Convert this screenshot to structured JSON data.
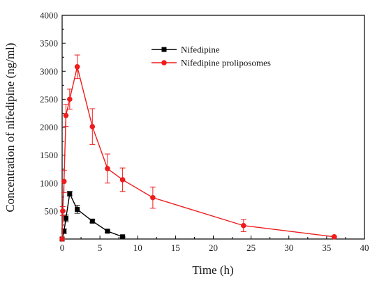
{
  "chart_data": {
    "type": "line",
    "title": "",
    "xlabel": "Time (h)",
    "ylabel": "Concentration of nifedipine (ng/ml)",
    "xlim": [
      0,
      40
    ],
    "ylim": [
      0,
      4000
    ],
    "x_ticks": [
      0,
      5,
      10,
      15,
      20,
      25,
      30,
      35,
      40
    ],
    "y_ticks": [
      500,
      1000,
      1500,
      2000,
      2500,
      3000,
      3500,
      4000
    ],
    "x_tick_labels": [
      "0",
      "5",
      "10",
      "15",
      "20",
      "25",
      "30",
      "35",
      "40"
    ],
    "y_tick_labels": [
      "500",
      "1000",
      "1500",
      "2000",
      "2500",
      "3000",
      "3500",
      "4000"
    ],
    "grid": false,
    "legend_position": "top-center",
    "series": [
      {
        "name": "Nifedipine",
        "color": "#000000",
        "marker": "square",
        "points": [
          {
            "x": 0,
            "y": 0,
            "err": 0
          },
          {
            "x": 0.25,
            "y": 140,
            "err": 40
          },
          {
            "x": 0.5,
            "y": 370,
            "err": 60
          },
          {
            "x": 1,
            "y": 810,
            "err": 40
          },
          {
            "x": 2,
            "y": 530,
            "err": 70
          },
          {
            "x": 4,
            "y": 320,
            "err": 30
          },
          {
            "x": 6,
            "y": 140,
            "err": 20
          },
          {
            "x": 8,
            "y": 40,
            "err": 10
          }
        ]
      },
      {
        "name": "Nifedipine proliposomes",
        "color": "#ee1c1c",
        "marker": "circle",
        "points": [
          {
            "x": 0,
            "y": 0,
            "err": 0
          },
          {
            "x": 0.083,
            "y": 500,
            "err": 80
          },
          {
            "x": 0.25,
            "y": 1030,
            "err": 200
          },
          {
            "x": 0.5,
            "y": 2210,
            "err": 200
          },
          {
            "x": 1,
            "y": 2500,
            "err": 180
          },
          {
            "x": 2,
            "y": 3080,
            "err": 210
          },
          {
            "x": 4,
            "y": 2010,
            "err": 320
          },
          {
            "x": 6,
            "y": 1260,
            "err": 260
          },
          {
            "x": 8,
            "y": 1060,
            "err": 210
          },
          {
            "x": 12,
            "y": 740,
            "err": 190
          },
          {
            "x": 24,
            "y": 240,
            "err": 110
          },
          {
            "x": 36,
            "y": 40,
            "err": 10
          }
        ]
      }
    ]
  }
}
